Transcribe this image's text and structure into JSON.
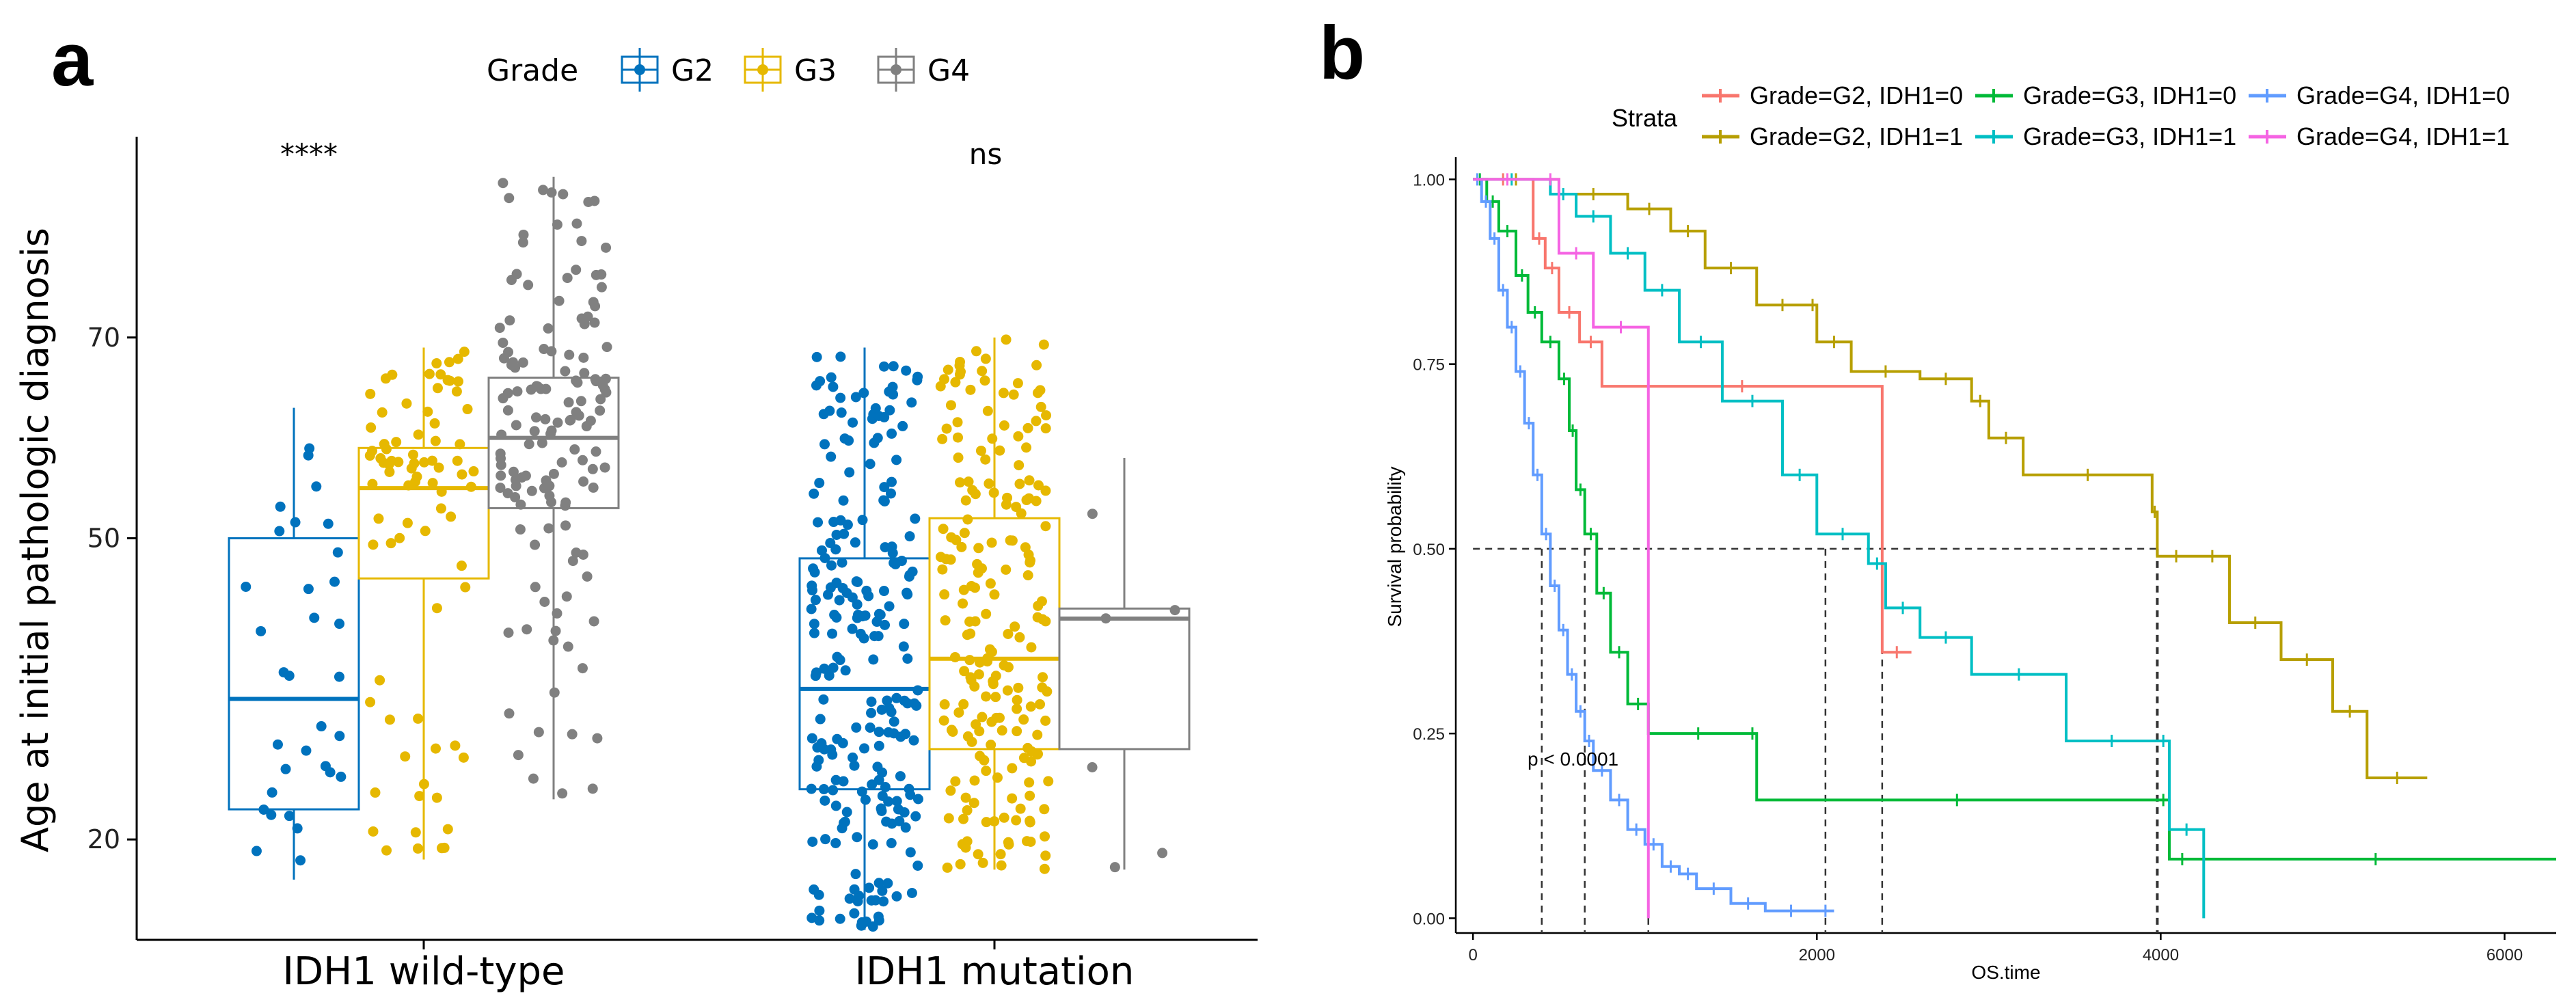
{
  "panel_a_letter": "a",
  "panel_b_letter": "b",
  "chart_data": [
    {
      "type": "box",
      "title": "",
      "legend_title": "Grade",
      "legend_position": "top",
      "ylabel": "Age at initial pathologic diagnosis",
      "xlabel": "",
      "ylim": [
        10,
        90
      ],
      "yticks": [
        20,
        50,
        70
      ],
      "categories": [
        "IDH1 wild-type",
        "IDH1 mutation"
      ],
      "significance": [
        "****",
        "ns"
      ],
      "colors": {
        "G2": "#0072BD",
        "G3": "#E6B800",
        "G4": "#808080"
      },
      "series": [
        {
          "name": "G2",
          "boxes": [
            {
              "category": "IDH1 wild-type",
              "min": 16,
              "q1": 23,
              "median": 34,
              "q3": 50,
              "max": 63,
              "n": 32
            },
            {
              "category": "IDH1 mutation",
              "min": 11,
              "q1": 25,
              "median": 35,
              "q3": 48,
              "max": 69,
              "n": 230
            }
          ]
        },
        {
          "name": "G3",
          "boxes": [
            {
              "category": "IDH1 wild-type",
              "min": 18,
              "q1": 46,
              "median": 55,
              "q3": 59,
              "max": 69,
              "n": 80
            },
            {
              "category": "IDH1 mutation",
              "min": 17,
              "q1": 29,
              "median": 38,
              "q3": 52,
              "max": 70,
              "n": 200
            }
          ]
        },
        {
          "name": "G4",
          "boxes": [
            {
              "category": "IDH1 wild-type",
              "min": 24,
              "q1": 53,
              "median": 60,
              "q3": 66,
              "max": 86,
              "n": 140
            },
            {
              "category": "IDH1 mutation",
              "min": 17,
              "q1": 29,
              "median": 42,
              "q3": 43,
              "max": 58,
              "n": 6
            }
          ]
        }
      ]
    },
    {
      "type": "line",
      "title": "",
      "legend_title": "Strata",
      "legend_position": "top",
      "xlabel": "OS.time",
      "ylabel": "Survival probability",
      "xlim": [
        -100,
        6300
      ],
      "ylim": [
        -0.02,
        1.03
      ],
      "xticks": [
        0,
        2000,
        4000,
        6000
      ],
      "yticks": [
        "0.00",
        "0.25",
        "0.50",
        "0.75",
        "1.00"
      ],
      "annotation": "p < 0.0001",
      "median_line": 0.5,
      "median_times": [
        400,
        650,
        1020,
        2050,
        2380,
        3980
      ],
      "series": [
        {
          "name": "Grade=G2, IDH1=0",
          "color": "#F8766D",
          "x": [
            0,
            350,
            420,
            500,
            620,
            750,
            2380,
            2550
          ],
          "y": [
            1.0,
            0.92,
            0.88,
            0.82,
            0.78,
            0.72,
            0.36,
            0.36
          ]
        },
        {
          "name": "Grade=G2, IDH1=1",
          "color": "#B79F00",
          "x": [
            0,
            500,
            900,
            1150,
            1350,
            1650,
            1950,
            2000,
            2200,
            2600,
            2900,
            3000,
            3200,
            3950,
            3980,
            4200,
            4400,
            4700,
            5000,
            5200,
            5550
          ],
          "y": [
            1.0,
            0.98,
            0.96,
            0.93,
            0.88,
            0.83,
            0.83,
            0.78,
            0.74,
            0.73,
            0.7,
            0.65,
            0.6,
            0.55,
            0.49,
            0.49,
            0.4,
            0.35,
            0.28,
            0.19,
            0.19
          ]
        },
        {
          "name": "Grade=G3, IDH1=0",
          "color": "#00BA38",
          "x": [
            0,
            80,
            150,
            250,
            320,
            400,
            500,
            560,
            600,
            650,
            720,
            800,
            900,
            1020,
            1600,
            1650,
            3980,
            4050,
            4200,
            6300
          ],
          "y": [
            1.0,
            0.97,
            0.93,
            0.87,
            0.82,
            0.78,
            0.73,
            0.66,
            0.58,
            0.52,
            0.44,
            0.36,
            0.29,
            0.25,
            0.25,
            0.16,
            0.16,
            0.08,
            0.08,
            0.08
          ]
        },
        {
          "name": "Grade=G3, IDH1=1",
          "color": "#00BFC4",
          "x": [
            0,
            450,
            600,
            800,
            1000,
            1200,
            1450,
            1800,
            2000,
            2300,
            2400,
            2600,
            2900,
            3450,
            3980,
            4050,
            4250
          ],
          "y": [
            1.0,
            0.98,
            0.95,
            0.9,
            0.85,
            0.78,
            0.7,
            0.6,
            0.52,
            0.48,
            0.42,
            0.38,
            0.33,
            0.24,
            0.24,
            0.12,
            0.0
          ]
        },
        {
          "name": "Grade=G4, IDH1=0",
          "color": "#619CFF",
          "x": [
            0,
            50,
            100,
            150,
            200,
            250,
            300,
            350,
            400,
            450,
            500,
            550,
            600,
            650,
            700,
            800,
            900,
            1000,
            1100,
            1200,
            1300,
            1500,
            1700,
            2000,
            2100
          ],
          "y": [
            1.0,
            0.97,
            0.92,
            0.85,
            0.8,
            0.74,
            0.67,
            0.6,
            0.52,
            0.45,
            0.39,
            0.33,
            0.28,
            0.24,
            0.2,
            0.16,
            0.12,
            0.1,
            0.07,
            0.06,
            0.04,
            0.02,
            0.01,
            0.01,
            0.01
          ]
        },
        {
          "name": "Grade=G4, IDH1=1",
          "color": "#F564E3",
          "x": [
            0,
            400,
            500,
            700,
            1020,
            1020
          ],
          "y": [
            1.0,
            1.0,
            0.9,
            0.8,
            0.6,
            0.0
          ]
        }
      ]
    }
  ]
}
